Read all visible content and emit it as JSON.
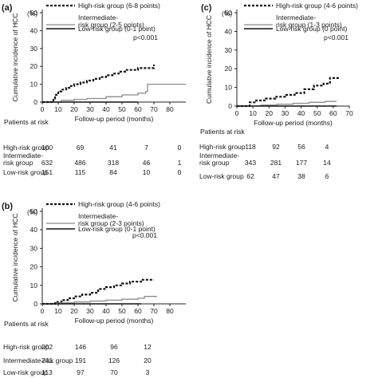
{
  "chart_data": [
    {
      "panel_label": "(a)",
      "type": "line",
      "ylabel": "Cumulative incidence of HCC",
      "yunit": "(%)",
      "xlabel": "Follow-up period (months)",
      "xlim": [
        0,
        90
      ],
      "ylim": [
        0,
        50
      ],
      "xticks": [
        0,
        10,
        20,
        30,
        40,
        50,
        60,
        70,
        80
      ],
      "yticks": [
        0,
        10,
        20,
        30,
        40,
        50
      ],
      "p_value": "p<0.001",
      "series": [
        {
          "name": "High-risk group (6-8 points)",
          "style": "dotted",
          "x": [
            0,
            6,
            7,
            8,
            10,
            12,
            15,
            18,
            20,
            24,
            28,
            32,
            36,
            40,
            44,
            48,
            52,
            60,
            70
          ],
          "y": [
            0,
            0,
            2,
            4,
            6,
            7,
            8,
            9,
            10,
            11,
            12,
            13,
            14,
            15,
            16,
            17,
            18,
            19,
            21
          ]
        },
        {
          "name": "Intermediate-risk group (2-5 points)",
          "style": "solid-gray",
          "x": [
            0,
            12,
            20,
            28,
            40,
            50,
            60,
            65,
            66,
            90
          ],
          "y": [
            0,
            1,
            1.5,
            2,
            3,
            4,
            5,
            6,
            10,
            10
          ]
        },
        {
          "name": "Low-risk group (0-1 point)",
          "style": "solid",
          "x": [
            0,
            60
          ],
          "y": [
            0,
            0
          ]
        }
      ],
      "at_risk": {
        "header": "Patients at risk",
        "rows": [
          {
            "label": "High-risk group",
            "values": [
              "100",
              "69",
              "41",
              "7",
              "0"
            ]
          },
          {
            "label": "Intermediate-risk group",
            "values": [
              "632",
              "486",
              "318",
              "46",
              "1"
            ]
          },
          {
            "label": "Low-risk group",
            "values": [
              "151",
              "115",
              "84",
              "10",
              "0"
            ]
          }
        ]
      }
    },
    {
      "panel_label": "(b)",
      "type": "line",
      "ylabel": "Cumulative incidence of HCC",
      "yunit": "(%)",
      "xlabel": "Follow-up period (months)",
      "xlim": [
        0,
        90
      ],
      "ylim": [
        0,
        50
      ],
      "xticks": [
        0,
        10,
        20,
        30,
        40,
        50,
        60,
        70,
        80
      ],
      "yticks": [
        0,
        10,
        20,
        30,
        40,
        50
      ],
      "p_value": "p<0.001",
      "series": [
        {
          "name": "High-risk group (4-6 points)",
          "style": "dotted",
          "x": [
            0,
            6,
            8,
            12,
            16,
            20,
            25,
            30,
            35,
            40,
            45,
            50,
            55,
            62,
            70
          ],
          "y": [
            0,
            0,
            1,
            2,
            3,
            4,
            5,
            6,
            8,
            9,
            10,
            11,
            12,
            13,
            13
          ]
        },
        {
          "name": "Intermediate-risk group (2-3 points)",
          "style": "solid-gray",
          "x": [
            0,
            10,
            20,
            30,
            40,
            50,
            60,
            64,
            72
          ],
          "y": [
            0,
            0.5,
            1,
            1.5,
            2,
            2.5,
            3,
            4,
            4
          ]
        },
        {
          "name": "Low-risk group (0-1 point)",
          "style": "solid",
          "x": [
            0,
            62
          ],
          "y": [
            0,
            0
          ]
        }
      ],
      "at_risk": {
        "header": "Patients at risk",
        "rows": [
          {
            "label": "High-risk group",
            "values": [
              "202",
              "146",
              "96",
              "12"
            ]
          },
          {
            "label": "Intermediate-risk group",
            "values": [
              "241",
              "191",
              "126",
              "20"
            ]
          },
          {
            "label": "Low-risk group",
            "values": [
              "113",
              "97",
              "70",
              "3"
            ]
          }
        ]
      }
    },
    {
      "panel_label": "(c)",
      "type": "line",
      "ylabel": "Cumulative incidence of HCC",
      "yunit": "(%)",
      "xlabel": "Follow-up period (months)",
      "xlim": [
        0,
        70
      ],
      "ylim": [
        0,
        50
      ],
      "xticks": [
        0,
        10,
        20,
        30,
        40,
        50,
        60,
        70
      ],
      "yticks": [
        0,
        10,
        20,
        30,
        40,
        50
      ],
      "p_value": "p<0.001",
      "series": [
        {
          "name": "High-risk group (4-6 points)",
          "style": "dotted",
          "x": [
            0,
            5,
            8,
            12,
            18,
            24,
            30,
            36,
            42,
            48,
            54,
            58,
            64
          ],
          "y": [
            0,
            0,
            2,
            3,
            4,
            5,
            6,
            7,
            9,
            11,
            12,
            15,
            15
          ]
        },
        {
          "name": "Intermediate-risk group (1-3 points)",
          "style": "solid-gray",
          "x": [
            0,
            15,
            25,
            35,
            45,
            55,
            62
          ],
          "y": [
            0,
            0.5,
            1,
            1.5,
            2,
            2.5,
            2.5
          ]
        },
        {
          "name": "Low-risk group (0 point)",
          "style": "solid",
          "x": [
            0,
            62
          ],
          "y": [
            0,
            0
          ]
        }
      ],
      "at_risk": {
        "header": "Patients at risk",
        "rows": [
          {
            "label": "High-risk group",
            "values": [
              "118",
              "92",
              "56",
              "4"
            ]
          },
          {
            "label": "Intermediate-risk group",
            "values": [
              "343",
              "281",
              "177",
              "14"
            ]
          },
          {
            "label": "Low-risk group",
            "values": [
              "62",
              "47",
              "38",
              "6"
            ]
          }
        ]
      }
    }
  ]
}
